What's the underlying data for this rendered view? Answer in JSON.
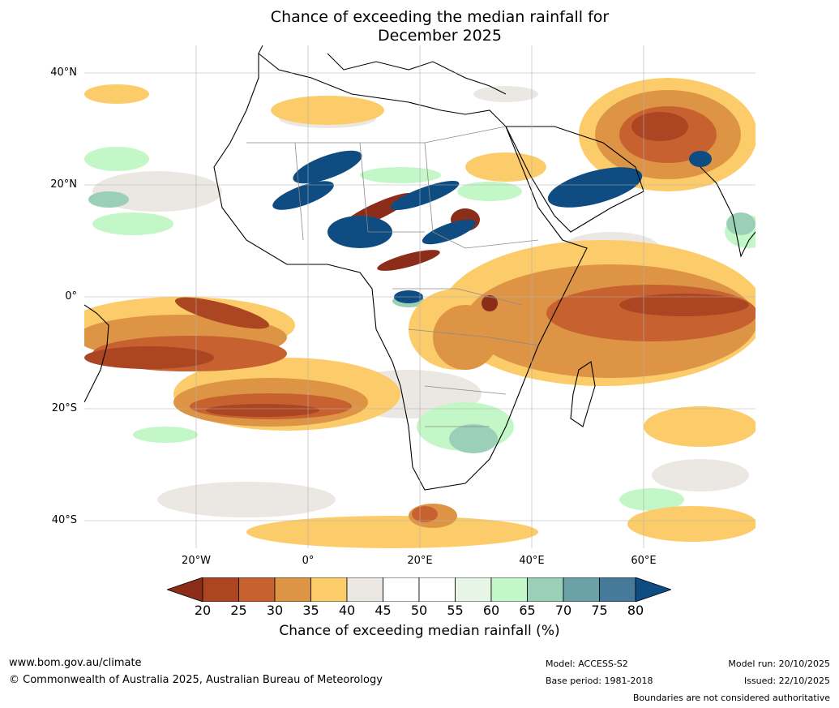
{
  "title_line1": "Chance of exceeding the median rainfall for",
  "title_line2": "December 2025",
  "lat_labels": [
    "40°N",
    "20°N",
    "0°",
    "20°S",
    "40°S"
  ],
  "lon_labels": [
    "20°W",
    "0°",
    "20°E",
    "40°E",
    "60°E"
  ],
  "colorbar": {
    "ticks": [
      "20",
      "25",
      "30",
      "35",
      "40",
      "45",
      "50",
      "55",
      "60",
      "65",
      "70",
      "75",
      "80"
    ],
    "colors": [
      "#8c2d1a",
      "#ab4522",
      "#c76230",
      "#de9445",
      "#fdcc6a",
      "#ebe8e3",
      "#ffffff",
      "#ffffff",
      "#e6f5e6",
      "#c3f7c8",
      "#9acfb8",
      "#6aa2a8",
      "#457a9a",
      "#0f4c82"
    ],
    "label": "Chance of exceeding median rainfall (%)"
  },
  "footer": {
    "website": "www.bom.gov.au/climate",
    "copyright": "© Commonwealth of Australia 2025, Australian Bureau of Meteorology",
    "model": "Model: ACCESS-S2",
    "base_period": "Base period: 1981-2018",
    "model_run": "Model run: 20/10/2025",
    "issued": "Issued: 22/10/2025",
    "disclaimer": "Boundaries are not considered authoritative"
  }
}
